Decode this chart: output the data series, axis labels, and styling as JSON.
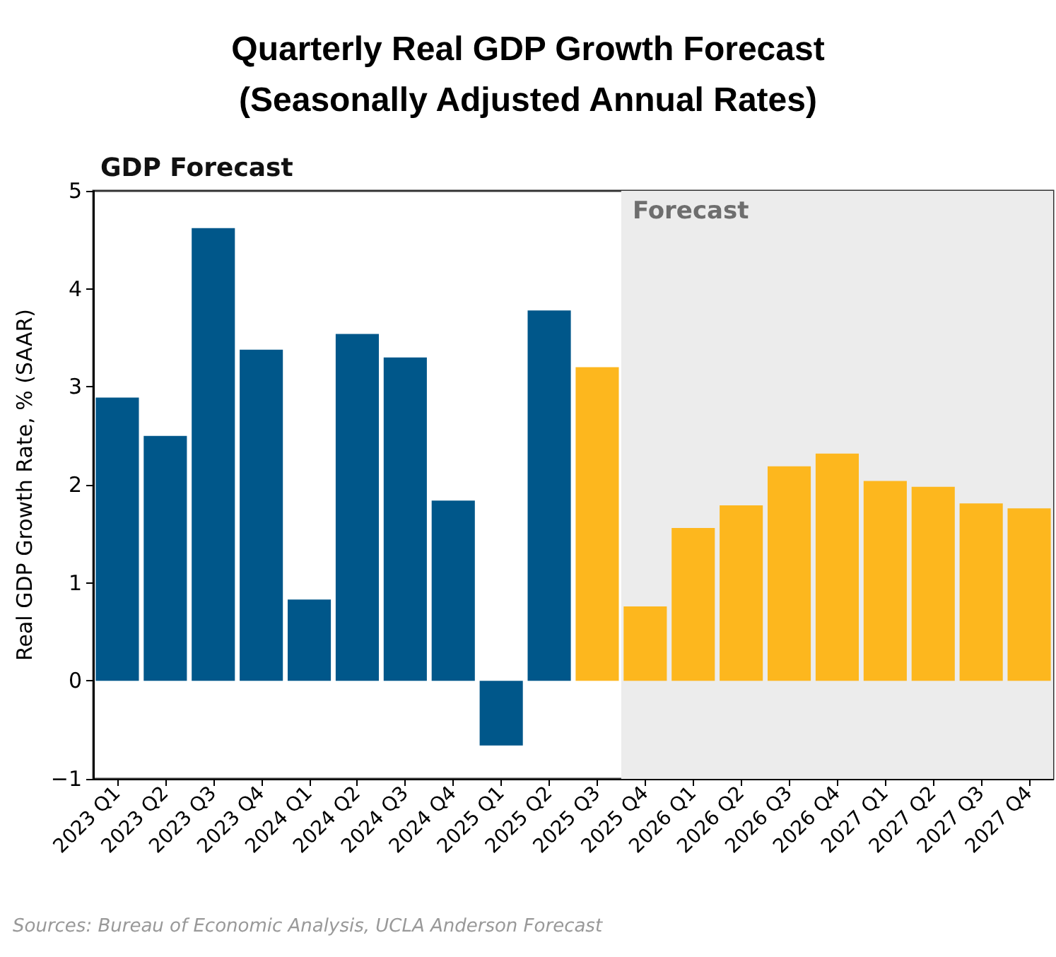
{
  "chart_data": {
    "type": "bar",
    "title": "Quarterly Real GDP Growth Forecast\n(Seasonally Adjusted Annual Rates)",
    "subtitle": "GDP Forecast",
    "ylabel": "Real GDP Growth Rate, % (SAAR)",
    "categories": [
      "2023 Q1",
      "2023 Q2",
      "2023 Q3",
      "2023 Q4",
      "2024 Q1",
      "2024 Q2",
      "2024 Q3",
      "2024 Q4",
      "2025 Q1",
      "2025 Q2",
      "2025 Q3",
      "2025 Q4",
      "2026 Q1",
      "2026 Q2",
      "2026 Q3",
      "2026 Q4",
      "2027 Q1",
      "2027 Q2",
      "2027 Q3",
      "2027 Q4"
    ],
    "values": [
      2.89,
      2.5,
      4.62,
      3.38,
      0.83,
      3.54,
      3.3,
      1.84,
      -0.66,
      3.78,
      3.2,
      0.76,
      1.56,
      1.79,
      2.19,
      2.32,
      2.04,
      1.98,
      1.81,
      1.76
    ],
    "colors": [
      "#00578a",
      "#00578a",
      "#00578a",
      "#00578a",
      "#00578a",
      "#00578a",
      "#00578a",
      "#00578a",
      "#00578a",
      "#00578a",
      "#fdb71e",
      "#fdb71e",
      "#fdb71e",
      "#fdb71e",
      "#fdb71e",
      "#fdb71e",
      "#fdb71e",
      "#fdb71e",
      "#fdb71e",
      "#fdb71e"
    ],
    "ylim": [
      -1,
      5
    ],
    "yticks": [
      -1,
      0,
      1,
      2,
      3,
      4,
      5
    ],
    "grid": false,
    "bands": [
      {
        "axis": "x",
        "from": "2025 Q4",
        "to": "2027 Q4",
        "label": "Forecast",
        "color": "#ececec"
      }
    ],
    "annotations": [
      "Sources: Bureau of Economic Analysis, UCLA Anderson Forecast"
    ]
  }
}
